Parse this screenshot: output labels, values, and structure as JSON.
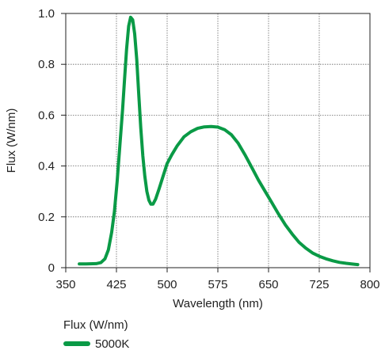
{
  "chart_data": {
    "type": "line",
    "xlabel": "Wavelength (nm)",
    "ylabel": "Flux (W/nm)",
    "xlim": [
      350,
      800
    ],
    "ylim": [
      0,
      1.0
    ],
    "x_ticks": [
      350,
      425,
      500,
      575,
      650,
      725,
      800
    ],
    "y_ticks": [
      0,
      0.2,
      0.4,
      0.6,
      0.8,
      1.0
    ],
    "x_tick_labels": [
      "350",
      "425",
      "500",
      "575",
      "650",
      "725",
      "800"
    ],
    "y_tick_labels": [
      "0",
      "0.2",
      "0.4",
      "0.6",
      "0.8",
      "1.0"
    ],
    "grid": true,
    "legend": {
      "title": "Flux (W/nm)",
      "position": "bottom-left"
    },
    "series": [
      {
        "name": "5000K",
        "color": "#0a9a46",
        "points": [
          [
            370,
            0.015
          ],
          [
            380,
            0.015
          ],
          [
            395,
            0.016
          ],
          [
            402,
            0.02
          ],
          [
            408,
            0.035
          ],
          [
            413,
            0.07
          ],
          [
            418,
            0.14
          ],
          [
            422,
            0.22
          ],
          [
            426,
            0.34
          ],
          [
            430,
            0.48
          ],
          [
            434,
            0.62
          ],
          [
            437,
            0.74
          ],
          [
            440,
            0.86
          ],
          [
            443,
            0.95
          ],
          [
            446,
            0.985
          ],
          [
            449,
            0.975
          ],
          [
            452,
            0.92
          ],
          [
            455,
            0.82
          ],
          [
            458,
            0.68
          ],
          [
            461,
            0.55
          ],
          [
            464,
            0.44
          ],
          [
            467,
            0.36
          ],
          [
            470,
            0.3
          ],
          [
            473,
            0.265
          ],
          [
            476,
            0.25
          ],
          [
            479,
            0.25
          ],
          [
            483,
            0.27
          ],
          [
            488,
            0.31
          ],
          [
            494,
            0.36
          ],
          [
            500,
            0.41
          ],
          [
            507,
            0.445
          ],
          [
            515,
            0.48
          ],
          [
            525,
            0.515
          ],
          [
            535,
            0.535
          ],
          [
            545,
            0.548
          ],
          [
            555,
            0.554
          ],
          [
            565,
            0.555
          ],
          [
            575,
            0.553
          ],
          [
            585,
            0.543
          ],
          [
            595,
            0.523
          ],
          [
            605,
            0.49
          ],
          [
            615,
            0.445
          ],
          [
            625,
            0.395
          ],
          [
            635,
            0.345
          ],
          [
            645,
            0.3
          ],
          [
            655,
            0.255
          ],
          [
            665,
            0.21
          ],
          [
            675,
            0.168
          ],
          [
            685,
            0.132
          ],
          [
            695,
            0.1
          ],
          [
            705,
            0.077
          ],
          [
            715,
            0.058
          ],
          [
            725,
            0.045
          ],
          [
            735,
            0.035
          ],
          [
            745,
            0.027
          ],
          [
            755,
            0.021
          ],
          [
            765,
            0.017
          ],
          [
            775,
            0.014
          ],
          [
            782,
            0.012
          ]
        ]
      }
    ]
  }
}
